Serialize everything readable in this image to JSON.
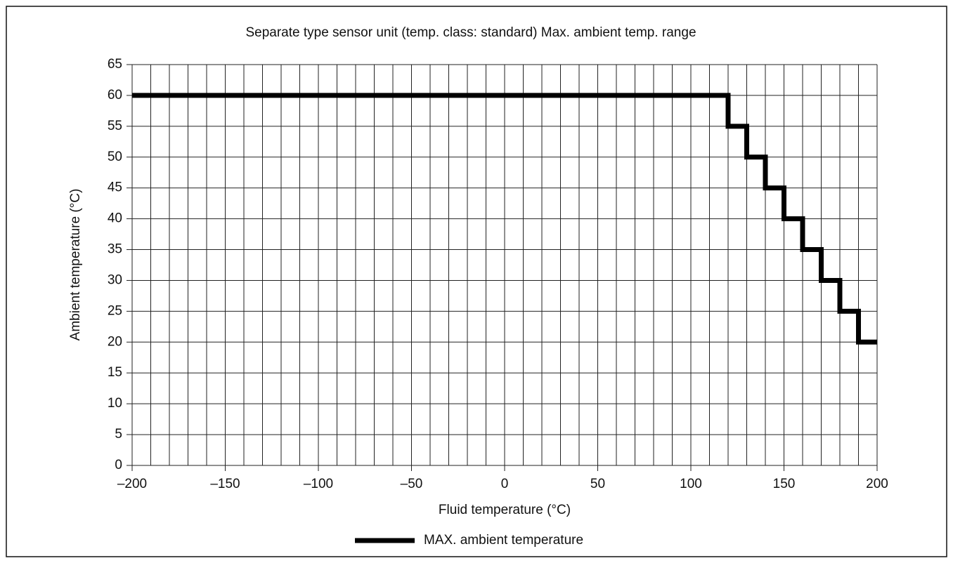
{
  "chart_data": {
    "type": "line",
    "title": "Separate type sensor unit (temp. class: standard) Max. ambient temp. range",
    "x_label": "Fluid temperature (°C)",
    "y_label": "Ambient temperature (°C)",
    "x": [
      -200,
      120,
      120,
      130,
      130,
      140,
      140,
      150,
      150,
      160,
      160,
      170,
      170,
      180,
      180,
      190,
      190,
      200
    ],
    "series": [
      {
        "name": "MAX. ambient temperature",
        "color": "#000000",
        "values": [
          60,
          60,
          55,
          55,
          50,
          50,
          45,
          45,
          40,
          40,
          35,
          35,
          30,
          30,
          25,
          25,
          20,
          20
        ]
      }
    ],
    "xlim": [
      -200,
      200
    ],
    "xticks": [
      {
        "value": -200,
        "label": "–200"
      },
      {
        "value": -150,
        "label": "–150"
      },
      {
        "value": -100,
        "label": "–100"
      },
      {
        "value": -50,
        "label": "–50"
      },
      0,
      50,
      100,
      150,
      200
    ],
    "xgrid": [
      -200,
      -190,
      -180,
      -170,
      -160,
      -150,
      -140,
      -130,
      -120,
      -110,
      -100,
      -90,
      -80,
      -70,
      -60,
      -50,
      -40,
      -30,
      -20,
      -10,
      0,
      10,
      20,
      30,
      40,
      50,
      60,
      70,
      80,
      90,
      100,
      110,
      120,
      130,
      140,
      150,
      160,
      170,
      180,
      190,
      200
    ],
    "ylim": [
      0,
      65
    ],
    "yticks": [
      0,
      5,
      10,
      15,
      20,
      25,
      30,
      35,
      40,
      45,
      50,
      55,
      60,
      65
    ],
    "grid": true,
    "legend": "bottom"
  }
}
